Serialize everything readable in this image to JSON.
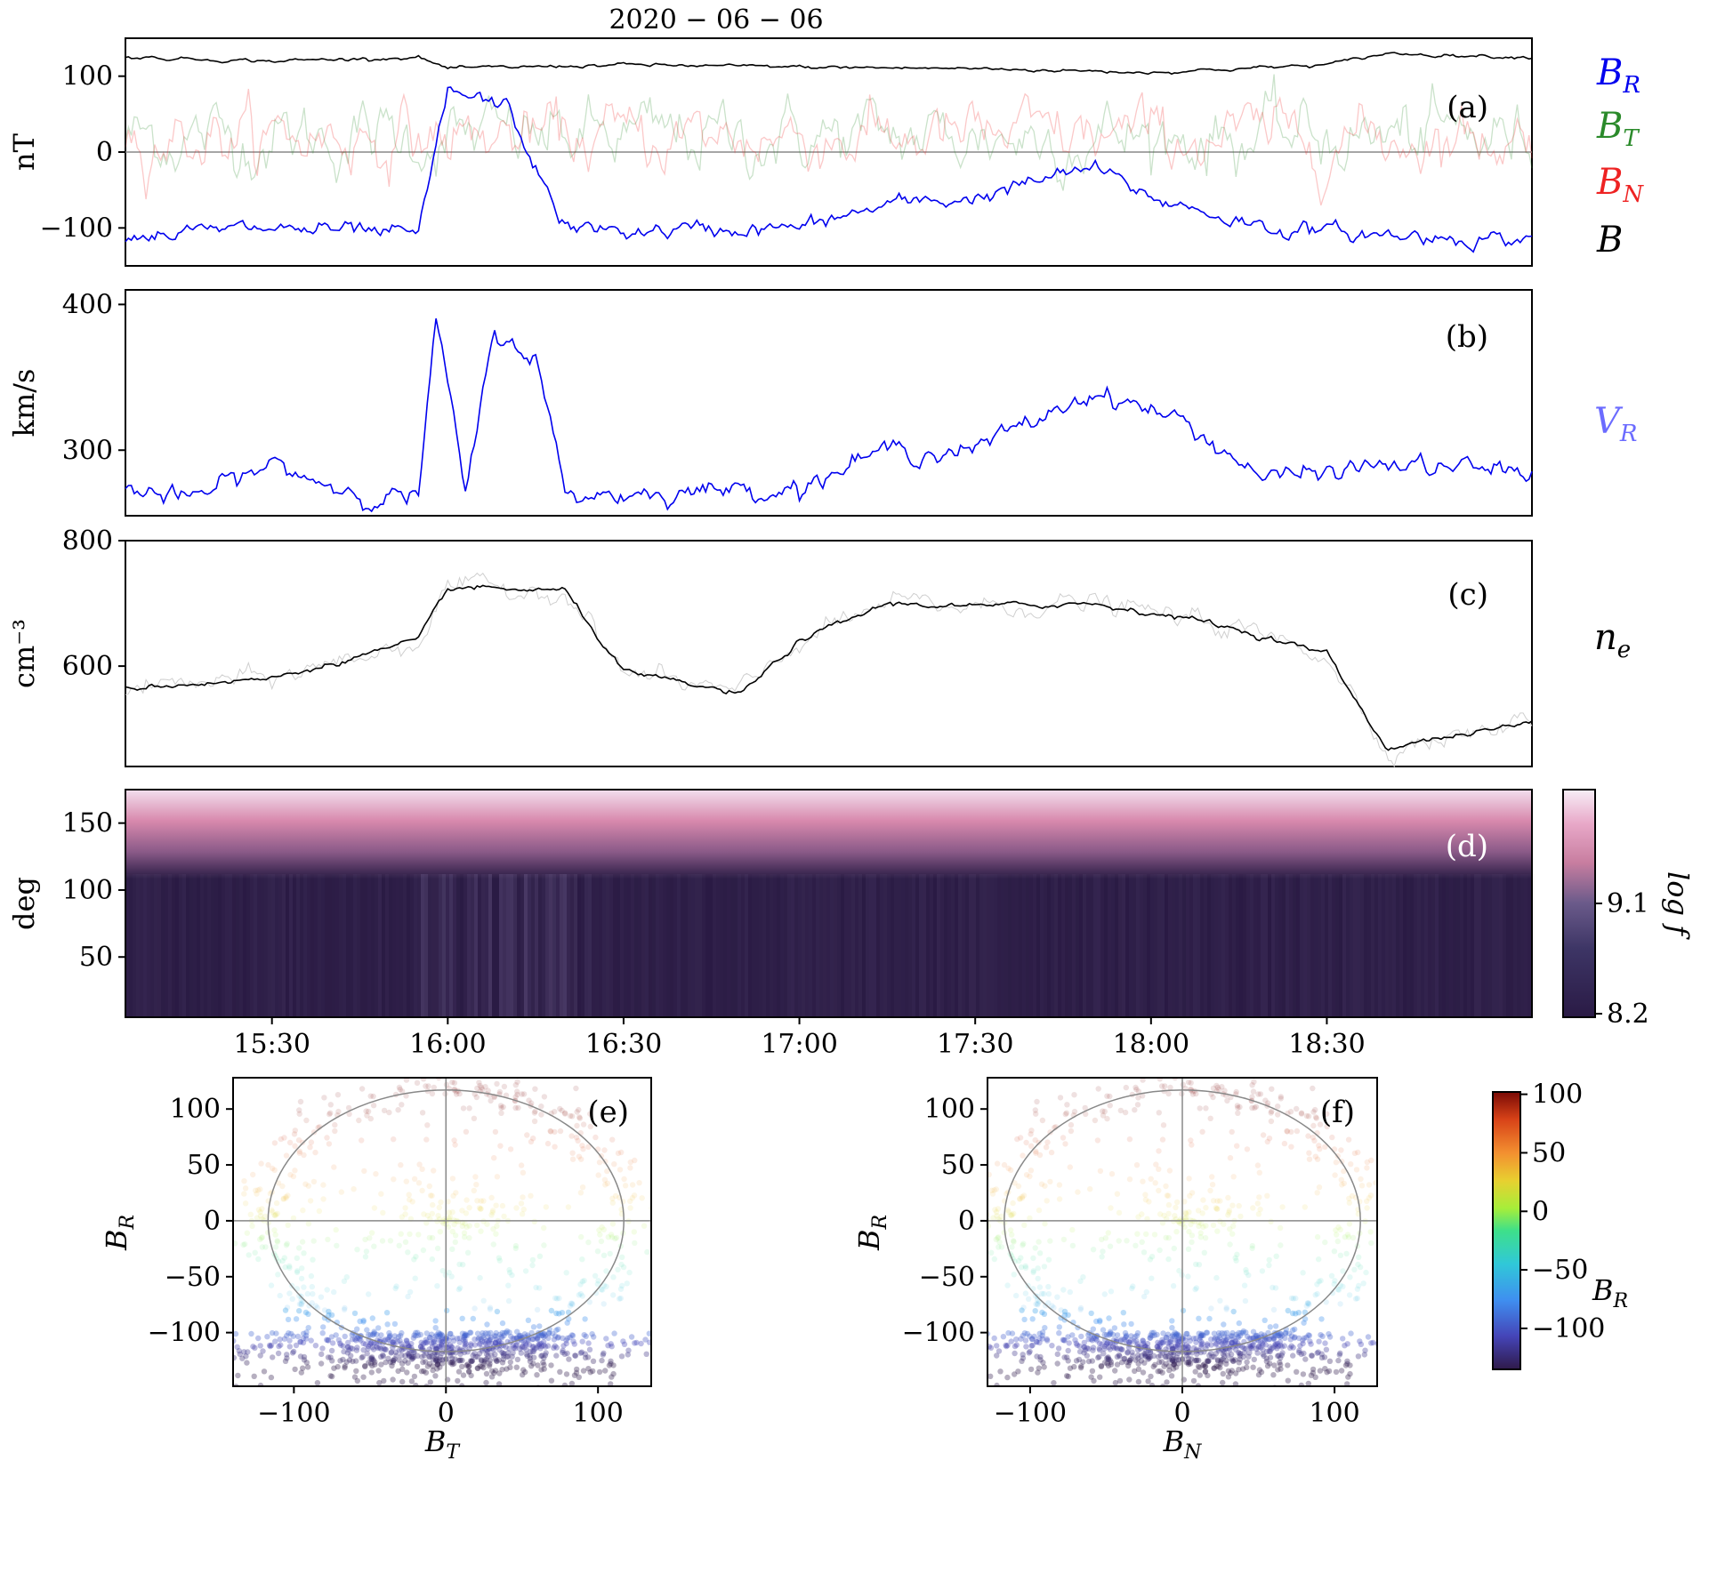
{
  "title": "2020 − 06 − 06",
  "colors": {
    "BR": "#0000ee",
    "BT": "#2a8a2a",
    "BN": "#ee2222",
    "B": "#000000",
    "VR": "#6b6bff",
    "ne": "#000000"
  },
  "time_ticks": [
    "15:30",
    "16:00",
    "16:30",
    "17:00",
    "17:30",
    "18:00",
    "18:30"
  ],
  "chart_data": [
    {
      "panel": "(a)",
      "type": "line",
      "ylabel": "nT",
      "yticks": [
        "100",
        "0",
        "−100"
      ],
      "ytick_values": [
        100,
        0,
        -100
      ],
      "ylim": [
        -150,
        150
      ],
      "legend": [
        {
          "name": "B",
          "sub": "R",
          "color": "#0000ee"
        },
        {
          "name": "B",
          "sub": "T",
          "color": "#2a8a2a"
        },
        {
          "name": "B",
          "sub": "N",
          "color": "#ee2222"
        },
        {
          "name": "B",
          "sub": "",
          "color": "#000000"
        }
      ],
      "series": [
        {
          "name": "B",
          "x": [
            "15:05",
            "15:30",
            "15:55",
            "16:00",
            "16:30",
            "17:00",
            "17:30",
            "18:00",
            "18:30",
            "18:40",
            "19:05"
          ],
          "values": [
            125,
            120,
            125,
            110,
            115,
            112,
            110,
            105,
            115,
            130,
            125
          ]
        },
        {
          "name": "BR",
          "x": [
            "15:05",
            "15:30",
            "15:55",
            "16:00",
            "16:10",
            "16:20",
            "16:30",
            "17:00",
            "17:15",
            "17:30",
            "17:50",
            "18:00",
            "18:20",
            "18:40",
            "19:05"
          ],
          "values": [
            -110,
            -100,
            -110,
            80,
            60,
            -100,
            -105,
            -100,
            -70,
            -60,
            -20,
            -60,
            -100,
            -110,
            -115
          ]
        }
      ]
    },
    {
      "panel": "(b)",
      "type": "line",
      "ylabel": "km/s",
      "yticks": [
        "400",
        "300"
      ],
      "ytick_values": [
        400,
        300
      ],
      "ylim": [
        255,
        410
      ],
      "legend": [
        {
          "name": "V",
          "sub": "R",
          "color": "#6b6bff"
        }
      ],
      "series": [
        {
          "name": "VR",
          "x": [
            "15:05",
            "15:15",
            "15:30",
            "15:45",
            "15:55",
            "15:58",
            "16:03",
            "16:08",
            "16:15",
            "16:20",
            "16:30",
            "17:00",
            "17:15",
            "17:30",
            "17:50",
            "17:55",
            "18:05",
            "18:20",
            "18:40",
            "19:05"
          ],
          "values": [
            275,
            265,
            290,
            270,
            268,
            390,
            270,
            380,
            365,
            270,
            270,
            275,
            300,
            300,
            340,
            335,
            320,
            280,
            290,
            285
          ]
        }
      ]
    },
    {
      "panel": "(c)",
      "type": "line",
      "ylabel": "cm⁻³",
      "yticks": [
        "800",
        "600"
      ],
      "ytick_values": [
        800,
        600
      ],
      "ylim": [
        440,
        800
      ],
      "legend": [
        {
          "name": "n",
          "sub": "e",
          "color": "#000000"
        }
      ],
      "series": [
        {
          "name": "ne",
          "x": [
            "15:05",
            "15:30",
            "15:55",
            "16:00",
            "16:20",
            "16:30",
            "16:50",
            "17:00",
            "17:15",
            "17:30",
            "17:50",
            "18:10",
            "18:30",
            "18:40",
            "19:05"
          ],
          "values": [
            565,
            580,
            640,
            725,
            720,
            590,
            555,
            640,
            700,
            695,
            700,
            670,
            620,
            470,
            510
          ]
        }
      ]
    },
    {
      "panel": "(d)",
      "type": "heatmap",
      "ylabel": "deg",
      "yticks": [
        "150",
        "100",
        "50"
      ],
      "ytick_values": [
        150,
        100,
        50
      ],
      "ylim": [
        5,
        175
      ],
      "colorbar": {
        "label": "log f",
        "ticks": [
          "9.1",
          "8.2"
        ],
        "tick_values": [
          9.1,
          8.2
        ]
      }
    },
    {
      "panel": "(e)",
      "type": "scatter",
      "xlabel": "B",
      "xlabel_sub": "T",
      "ylabel": "B",
      "ylabel_sub": "R",
      "xticks": [
        "−100",
        "0",
        "100"
      ],
      "xtick_values": [
        -100,
        0,
        100
      ],
      "yticks": [
        "100",
        "50",
        "0",
        "−50",
        "−100"
      ],
      "ytick_values": [
        100,
        50,
        0,
        -50,
        -100
      ],
      "xlim": [
        -140,
        135
      ],
      "ylim": [
        -148,
        128
      ]
    },
    {
      "panel": "(f)",
      "type": "scatter",
      "xlabel": "B",
      "xlabel_sub": "N",
      "ylabel": "B",
      "ylabel_sub": "R",
      "xticks": [
        "−100",
        "0",
        "100"
      ],
      "xtick_values": [
        -100,
        0,
        100
      ],
      "yticks": [
        "100",
        "50",
        "0",
        "−50",
        "−100"
      ],
      "ytick_values": [
        100,
        50,
        0,
        -50,
        -100
      ],
      "xlim": [
        -128,
        128
      ],
      "ylim": [
        -148,
        128
      ]
    }
  ],
  "scatter_colorbar": {
    "label": "B",
    "label_sub": "R",
    "ticks": [
      "100",
      "50",
      "0",
      "−50",
      "−100"
    ],
    "tick_values": [
      100,
      50,
      0,
      -50,
      -100
    ]
  }
}
